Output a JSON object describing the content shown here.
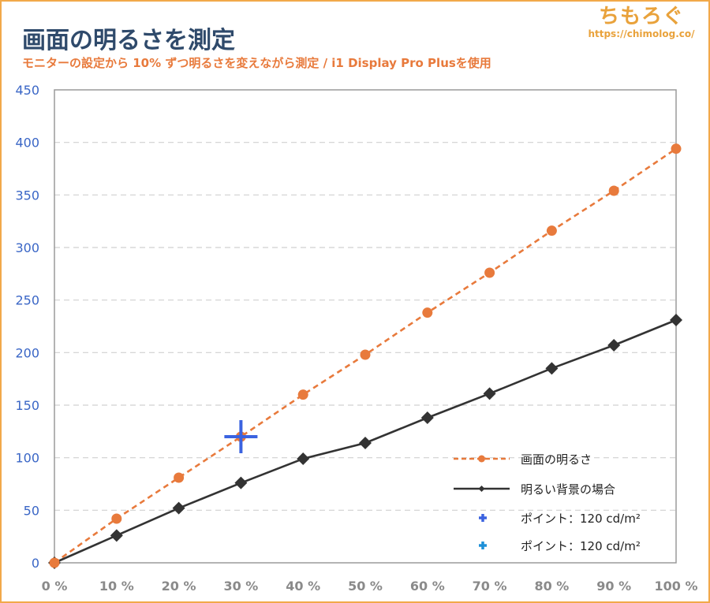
{
  "header": {
    "title": "画面の明るさを測定",
    "subtitle": "モニターの設定から 10% ずつ明るさを変えながら測定 / i1 Display Pro Plusを使用"
  },
  "logo": {
    "name": "ちもろぐ",
    "url": "https://chimolog.co/"
  },
  "colors": {
    "frame": "#f2a94a",
    "title": "#2f4a6b",
    "subtitle": "#e87a3c",
    "series_screen": "#e87a3c",
    "series_bright_bg": "#333333",
    "point_marker": "#3b63e0",
    "point_marker_2": "#1e90d8",
    "ytick": "#3a66c6",
    "xtick": "#8a8a8a",
    "grid": "#d0d0d0"
  },
  "chart_data": {
    "type": "line",
    "categories": [
      "0 %",
      "10 %",
      "20 %",
      "30 %",
      "40 %",
      "50 %",
      "60 %",
      "70 %",
      "80 %",
      "90 %",
      "100 %"
    ],
    "x": [
      0,
      10,
      20,
      30,
      40,
      50,
      60,
      70,
      80,
      90,
      100
    ],
    "ylim": [
      0,
      450
    ],
    "yticks": [
      0,
      50,
      100,
      150,
      200,
      250,
      300,
      350,
      400,
      450
    ],
    "grid": true,
    "legend_position": "bottom-right",
    "series": [
      {
        "name": "画面の明るさ",
        "style": "dashed",
        "marker": "circle",
        "color": "#e87a3c",
        "values": [
          0,
          42,
          81,
          120,
          160,
          198,
          238,
          276,
          316,
          354,
          394
        ]
      },
      {
        "name": "明るい背景の場合",
        "style": "solid",
        "marker": "diamond",
        "color": "#333333",
        "values": [
          0,
          26,
          52,
          76,
          99,
          114,
          138,
          161,
          185,
          207,
          231
        ]
      }
    ],
    "points": [
      {
        "name": "ポイント：120 cd/m²",
        "x": 30,
        "y": 120,
        "color": "#3b63e0",
        "marker": "cross"
      },
      {
        "name": "ポイント：120 cd/m²",
        "color": "#1e90d8",
        "marker": "cross",
        "legend_only": true
      }
    ]
  }
}
